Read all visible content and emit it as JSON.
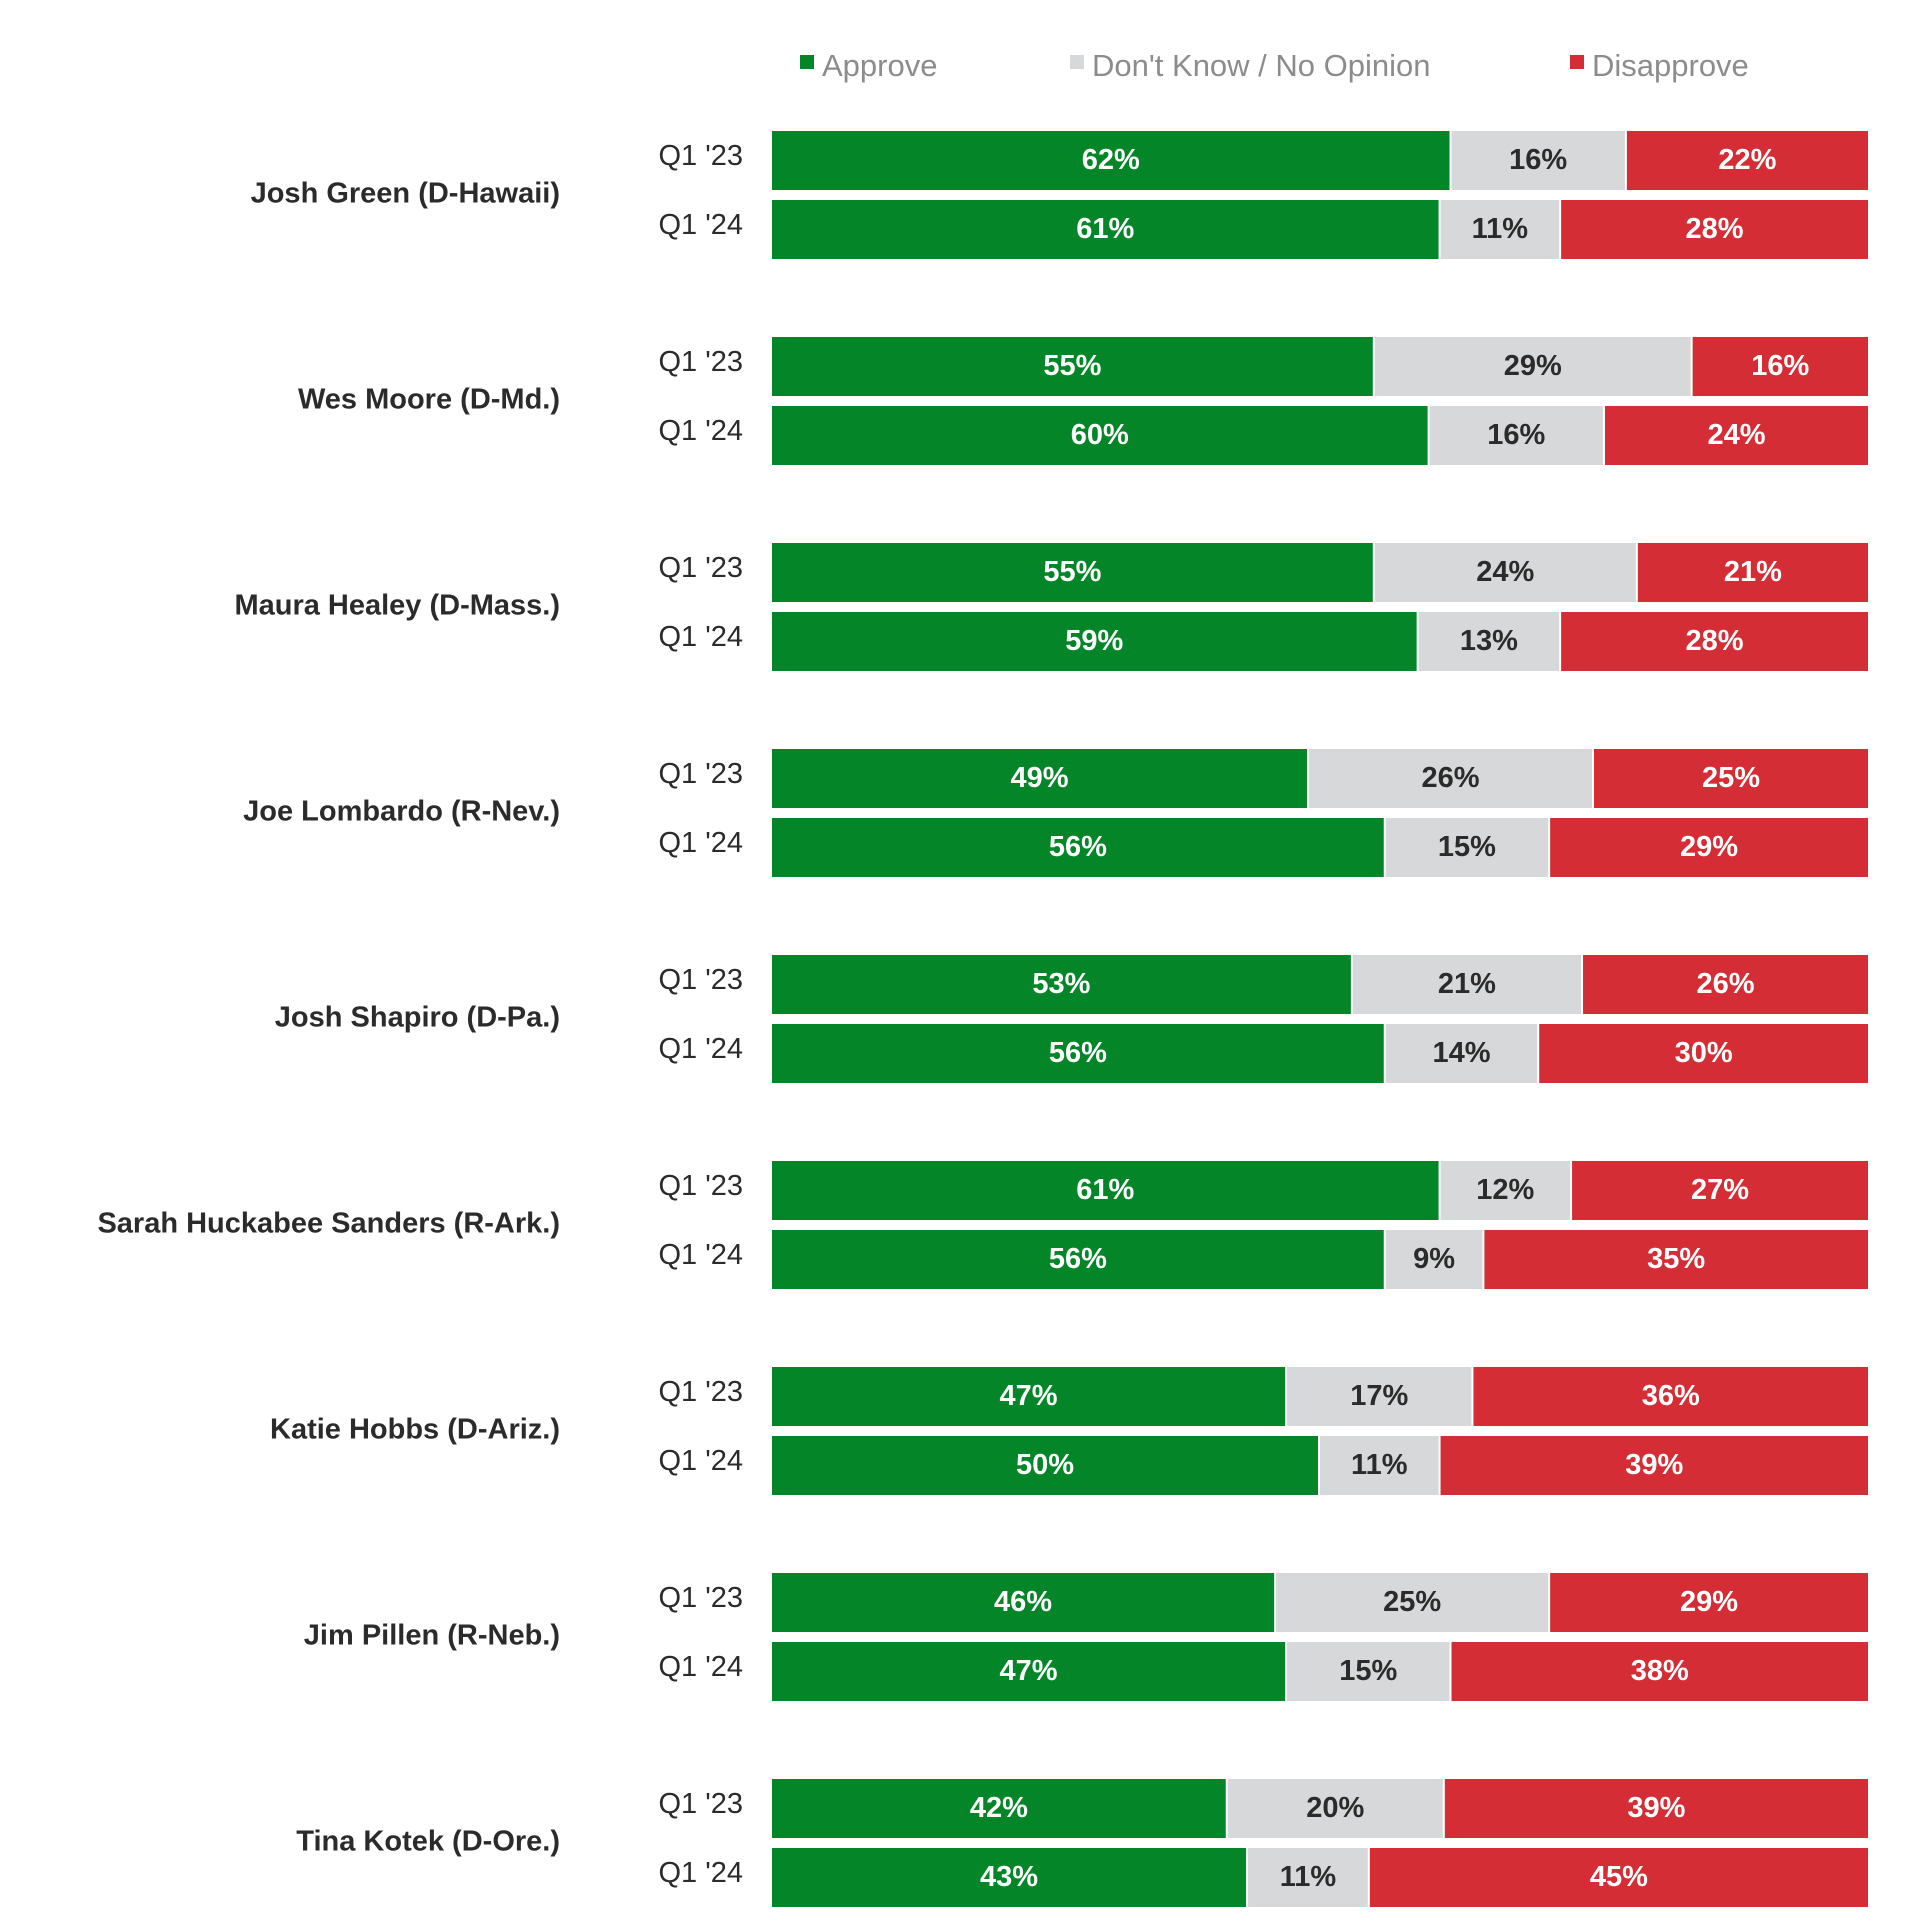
{
  "chart_data": {
    "type": "bar",
    "orientation": "horizontal",
    "stacked": true,
    "percent_stacked": true,
    "legend": {
      "placement": "top",
      "entries": [
        {
          "name": "Approve",
          "color": "#048628"
        },
        {
          "name": "Don't Know / No Opinion",
          "color": "#d6d8d9"
        },
        {
          "name": "Disapprove",
          "color": "#d52d35"
        }
      ]
    },
    "label_colors": {
      "Approve": "#ffffff",
      "Don't Know / No Opinion": "#2b2b2b",
      "Disapprove": "#ffffff"
    },
    "grid": false,
    "xlim": [
      0,
      100
    ],
    "groups": [
      {
        "name": "Josh Green (D-Hawaii)",
        "rows": [
          {
            "period": "Q1 '23",
            "values": [
              62,
              16,
              22
            ],
            "labels": [
              "62%",
              "16%",
              "22%"
            ]
          },
          {
            "period": "Q1 '24",
            "values": [
              61,
              11,
              28
            ],
            "labels": [
              "61%",
              "11%",
              "28%"
            ]
          }
        ]
      },
      {
        "name": "Wes Moore (D-Md.)",
        "rows": [
          {
            "period": "Q1 '23",
            "values": [
              55,
              29,
              16
            ],
            "labels": [
              "55%",
              "29%",
              "16%"
            ]
          },
          {
            "period": "Q1 '24",
            "values": [
              60,
              16,
              24
            ],
            "labels": [
              "60%",
              "16%",
              "24%"
            ]
          }
        ]
      },
      {
        "name": "Maura Healey (D-Mass.)",
        "rows": [
          {
            "period": "Q1 '23",
            "values": [
              55,
              24,
              21
            ],
            "labels": [
              "55%",
              "24%",
              "21%"
            ]
          },
          {
            "period": "Q1 '24",
            "values": [
              59,
              13,
              28
            ],
            "labels": [
              "59%",
              "13%",
              "28%"
            ]
          }
        ]
      },
      {
        "name": "Joe Lombardo (R-Nev.)",
        "rows": [
          {
            "period": "Q1 '23",
            "values": [
              49,
              26,
              25
            ],
            "labels": [
              "49%",
              "26%",
              "25%"
            ]
          },
          {
            "period": "Q1 '24",
            "values": [
              56,
              15,
              29
            ],
            "labels": [
              "56%",
              "15%",
              "29%"
            ]
          }
        ]
      },
      {
        "name": "Josh Shapiro (D-Pa.)",
        "rows": [
          {
            "period": "Q1 '23",
            "values": [
              53,
              21,
              26
            ],
            "labels": [
              "53%",
              "21%",
              "26%"
            ]
          },
          {
            "period": "Q1 '24",
            "values": [
              56,
              14,
              30
            ],
            "labels": [
              "56%",
              "14%",
              "30%"
            ]
          }
        ]
      },
      {
        "name": "Sarah Huckabee Sanders (R-Ark.)",
        "rows": [
          {
            "period": "Q1 '23",
            "values": [
              61,
              12,
              27
            ],
            "labels": [
              "61%",
              "12%",
              "27%"
            ]
          },
          {
            "period": "Q1 '24",
            "values": [
              56,
              9,
              35
            ],
            "labels": [
              "56%",
              "9%",
              "35%"
            ]
          }
        ]
      },
      {
        "name": "Katie Hobbs (D-Ariz.)",
        "rows": [
          {
            "period": "Q1 '23",
            "values": [
              47,
              17,
              36
            ],
            "labels": [
              "47%",
              "17%",
              "36%"
            ]
          },
          {
            "period": "Q1 '24",
            "values": [
              50,
              11,
              39
            ],
            "labels": [
              "50%",
              "11%",
              "39%"
            ]
          }
        ]
      },
      {
        "name": "Jim Pillen (R-Neb.)",
        "rows": [
          {
            "period": "Q1 '23",
            "values": [
              46,
              25,
              29
            ],
            "labels": [
              "46%",
              "25%",
              "29%"
            ]
          },
          {
            "period": "Q1 '24",
            "values": [
              47,
              15,
              38
            ],
            "labels": [
              "47%",
              "15%",
              "38%"
            ]
          }
        ]
      },
      {
        "name": "Tina Kotek (D-Ore.)",
        "rows": [
          {
            "period": "Q1 '23",
            "values": [
              42,
              20,
              39
            ],
            "labels": [
              "42%",
              "20%",
              "39%"
            ]
          },
          {
            "period": "Q1 '24",
            "values": [
              43,
              11,
              45
            ],
            "labels": [
              "43%",
              "11%",
              "45%"
            ]
          }
        ]
      }
    ]
  }
}
